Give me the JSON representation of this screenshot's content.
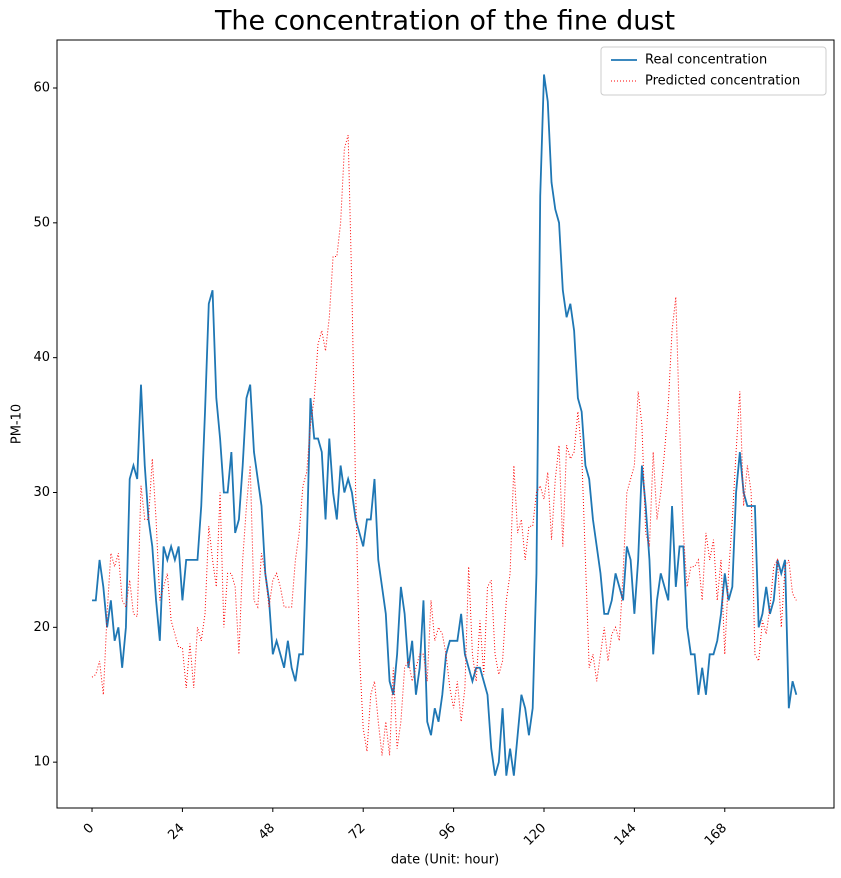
{
  "chart_data": {
    "type": "line",
    "title": "The concentration of the fine dust",
    "x_label": "date (Unit: hour)",
    "y_label": "PM-10",
    "x": [
      0,
      1,
      2,
      3,
      4,
      5,
      6,
      7,
      8,
      9,
      10,
      11,
      12,
      13,
      14,
      15,
      16,
      17,
      18,
      19,
      20,
      21,
      22,
      23,
      24,
      25,
      26,
      27,
      28,
      29,
      30,
      31,
      32,
      33,
      34,
      35,
      36,
      37,
      38,
      39,
      40,
      41,
      42,
      43,
      44,
      45,
      46,
      47,
      48,
      49,
      50,
      51,
      52,
      53,
      54,
      55,
      56,
      57,
      58,
      59,
      60,
      61,
      62,
      63,
      64,
      65,
      66,
      67,
      68,
      69,
      70,
      71,
      72,
      73,
      74,
      75,
      76,
      77,
      78,
      79,
      80,
      81,
      82,
      83,
      84,
      85,
      86,
      87,
      88,
      89,
      90,
      91,
      92,
      93,
      94,
      95,
      96,
      97,
      98,
      99,
      100,
      101,
      102,
      103,
      104,
      105,
      106,
      107,
      108,
      109,
      110,
      111,
      112,
      113,
      114,
      115,
      116,
      117,
      118,
      119,
      120,
      121,
      122,
      123,
      124,
      125,
      126,
      127,
      128,
      129,
      130,
      131,
      132,
      133,
      134,
      135,
      136,
      137,
      138,
      139,
      140,
      141,
      142,
      143,
      144,
      145,
      146,
      147,
      148,
      149,
      150,
      151,
      152,
      153,
      154,
      155,
      156,
      157,
      158,
      159,
      160,
      161,
      162,
      163,
      164,
      165,
      166,
      167,
      168,
      169,
      170,
      171,
      172,
      173,
      174,
      175,
      176,
      177,
      178,
      179,
      180,
      181,
      182,
      183,
      184,
      185,
      186,
      187
    ],
    "series": [
      {
        "name": "Real concentration",
        "color": "#1f77b4",
        "style": "solid",
        "values": [
          22,
          22,
          25,
          23,
          20,
          22,
          19,
          20,
          17,
          20,
          31,
          32,
          31,
          38,
          32,
          28,
          26,
          22,
          19,
          26,
          25,
          26,
          25,
          26,
          22,
          25,
          25,
          25,
          25,
          29,
          36,
          44,
          45,
          37,
          34,
          30,
          30,
          33,
          27,
          28,
          32,
          37,
          38,
          33,
          31,
          29,
          24,
          22,
          18,
          19,
          18,
          17,
          19,
          17,
          16,
          18,
          18,
          26,
          37,
          34,
          34,
          33,
          28,
          34,
          30,
          28,
          32,
          30,
          31,
          30,
          28,
          27,
          26,
          28,
          28,
          31,
          25,
          23,
          21,
          16,
          15,
          18,
          23,
          21,
          17,
          19,
          15,
          17,
          22,
          13,
          12,
          14,
          13,
          15,
          18,
          19,
          19,
          19,
          21,
          18,
          17,
          16,
          17,
          17,
          16,
          15,
          11,
          9,
          10,
          14,
          9,
          11,
          9,
          12,
          15,
          14,
          12,
          14,
          24,
          52,
          61,
          59,
          53,
          51,
          50,
          45,
          43,
          44,
          42,
          37,
          36,
          32,
          31,
          28,
          26,
          24,
          21,
          21,
          22,
          24,
          23,
          22,
          26,
          25,
          21,
          25,
          32,
          29,
          25,
          18,
          22,
          24,
          23,
          22,
          29,
          23,
          26,
          26,
          20,
          18,
          18,
          15,
          17,
          15,
          18,
          18,
          19,
          21,
          24,
          22,
          23,
          30,
          33,
          30,
          29,
          29,
          29,
          20,
          21,
          23,
          21,
          22,
          25,
          24,
          25,
          14,
          16,
          15
        ]
      },
      {
        "name": "Predicted concentration",
        "color": "#ff0000",
        "style": "dotted",
        "values": [
          16.3,
          16.5,
          17.5,
          15,
          21,
          25.5,
          24.5,
          25.5,
          22,
          21.5,
          23.5,
          21,
          20.8,
          30.5,
          28,
          28,
          32.5,
          28,
          22,
          23,
          24,
          20.5,
          19.5,
          18.5,
          18.5,
          15.5,
          18.8,
          15.5,
          20,
          19,
          21,
          27.5,
          25,
          23,
          30,
          20,
          24,
          24,
          23,
          18,
          25,
          29,
          32,
          22,
          21.5,
          25.5,
          24,
          21.5,
          23.5,
          24,
          23,
          21.5,
          21.5,
          21.5,
          25,
          27,
          30.5,
          31.5,
          35,
          37,
          41,
          42,
          40.5,
          43,
          47.5,
          47.5,
          50,
          55.5,
          56.5,
          45,
          30,
          18,
          12.5,
          10.8,
          15,
          16,
          13,
          10.5,
          13,
          10.5,
          17,
          11,
          13,
          17,
          17.5,
          16,
          17,
          18,
          18,
          16,
          22,
          19,
          20,
          19.5,
          18,
          15.5,
          14,
          16,
          13,
          15.5,
          24.5,
          18,
          16,
          20.5,
          16.5,
          23,
          23.5,
          18,
          16.5,
          17.5,
          22,
          24,
          32,
          27,
          28,
          25,
          27.5,
          27.5,
          30,
          30.5,
          29.5,
          31.5,
          26.5,
          31,
          33.5,
          26,
          33.5,
          32.5,
          33,
          36,
          33,
          25,
          17,
          18,
          16,
          18,
          20,
          17.5,
          19.5,
          20,
          19,
          24,
          30,
          31,
          32,
          37.5,
          35,
          27,
          26,
          33,
          28,
          30,
          33,
          36.5,
          42,
          44.5,
          35,
          27,
          23,
          24.5,
          24.5,
          25,
          22,
          27,
          25,
          26.5,
          22,
          25,
          18,
          24,
          28,
          33,
          37.5,
          29,
          32,
          30,
          18,
          17.5,
          20.5,
          19.5,
          21.5,
          24.5,
          25,
          20,
          24.5,
          25,
          22.5,
          22
        ]
      }
    ],
    "xlim": [
      -9.3,
      197
    ],
    "ylim": [
      6.6,
      63.56
    ],
    "xticks": [
      0,
      24,
      48,
      72,
      96,
      120,
      144,
      168
    ],
    "yticks": [
      10,
      20,
      30,
      40,
      50,
      60
    ],
    "legend": "upper right"
  }
}
